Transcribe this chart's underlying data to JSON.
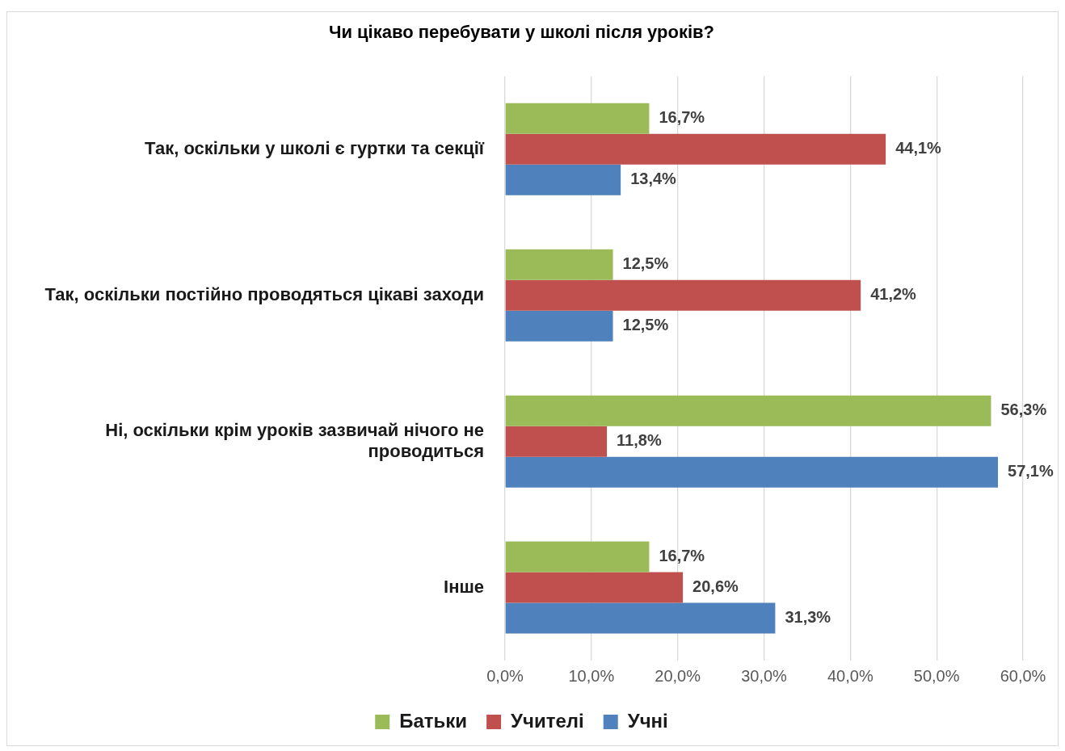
{
  "chart_data": {
    "type": "bar",
    "orientation": "horizontal",
    "title": "Чи цікаво перебувати у школі після уроків?",
    "categories": [
      "Так, оскільки у школі є гуртки та секції",
      "Так, оскільки постійно проводяться цікаві заходи",
      "Ні, оскільки крім уроків зазвичай нічого не проводиться",
      "Інше"
    ],
    "series": [
      {
        "name": "Батьки",
        "color": "#9bbb59",
        "values": [
          16.7,
          12.5,
          56.3,
          16.7
        ],
        "value_labels": [
          "16,7%",
          "12,5%",
          "56,3%",
          "16,7%"
        ]
      },
      {
        "name": "Учителі",
        "color": "#c0504d",
        "values": [
          44.1,
          41.2,
          11.8,
          20.6
        ],
        "value_labels": [
          "44,1%",
          "41,2%",
          "11,8%",
          "20,6%"
        ]
      },
      {
        "name": "Учні",
        "color": "#4f81bd",
        "values": [
          13.4,
          12.5,
          57.1,
          31.3
        ],
        "value_labels": [
          "13,4%",
          "12,5%",
          "57,1%",
          "31,3%"
        ]
      }
    ],
    "xlim": [
      0,
      60
    ],
    "xticks": [
      {
        "value": 0,
        "label": "0,0%"
      },
      {
        "value": 10,
        "label": "10,0%"
      },
      {
        "value": 20,
        "label": "20,0%"
      },
      {
        "value": 30,
        "label": "30,0%"
      },
      {
        "value": 40,
        "label": "40,0%"
      },
      {
        "value": 50,
        "label": "50,0%"
      },
      {
        "value": 60,
        "label": "60,0%"
      }
    ],
    "grid": "x",
    "legend": "bottom"
  }
}
